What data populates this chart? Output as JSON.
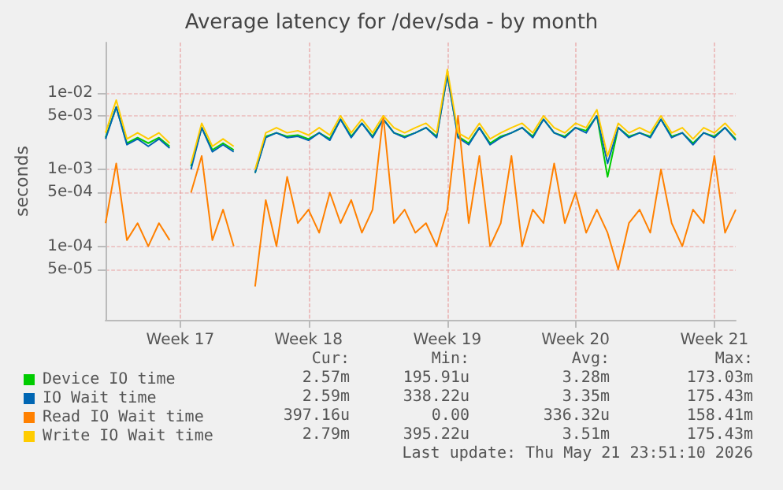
{
  "chart_data": {
    "type": "line",
    "title": "Average latency for /dev/sda - by month",
    "ylabel": "seconds",
    "log": "y",
    "categories": [
      null,
      null,
      null,
      null,
      null,
      null,
      null,
      "Week 17",
      null,
      null,
      null,
      null,
      null,
      null,
      null,
      null,
      null,
      null,
      null,
      "Week 18",
      null,
      null,
      null,
      null,
      null,
      null,
      null,
      null,
      null,
      null,
      null,
      null,
      "Week 19",
      null,
      null,
      null,
      null,
      null,
      null,
      null,
      null,
      null,
      null,
      null,
      "Week 20",
      null,
      null,
      null,
      null,
      null,
      null,
      null,
      null,
      null,
      null,
      null,
      null,
      "Week 21",
      null,
      null
    ],
    "series": [
      {
        "name": "Device IO time",
        "color": "#00cc00",
        "values": [
          0.0026,
          0.0065,
          0.0022,
          0.0026,
          0.0022,
          0.0026,
          0.002,
          null,
          0.0011,
          0.0035,
          0.0018,
          0.0022,
          0.0018,
          null,
          0.0009,
          0.0027,
          0.003,
          0.0027,
          0.0028,
          0.0025,
          0.003,
          0.0025,
          0.0045,
          0.0027,
          0.004,
          0.0027,
          0.0045,
          0.003,
          0.0027,
          0.003,
          0.0035,
          0.0027,
          0.017,
          0.0027,
          0.0022,
          0.0035,
          0.0022,
          0.0027,
          0.003,
          0.0035,
          0.0027,
          0.0045,
          0.003,
          0.0027,
          0.0035,
          0.0032,
          0.005,
          0.0008,
          0.0035,
          0.0027,
          0.003,
          0.0027,
          0.0045,
          0.0027,
          0.003,
          0.0022,
          0.003,
          0.0027,
          0.0035,
          0.0025
        ]
      },
      {
        "name": "IO Wait time",
        "color": "#0066b3",
        "values": [
          0.0025,
          0.0065,
          0.0021,
          0.0025,
          0.002,
          0.0025,
          0.0019,
          null,
          0.001,
          0.0035,
          0.0017,
          0.0021,
          0.0017,
          null,
          0.0009,
          0.0026,
          0.003,
          0.0026,
          0.0027,
          0.0024,
          0.003,
          0.0024,
          0.0045,
          0.0026,
          0.004,
          0.0026,
          0.0045,
          0.003,
          0.0026,
          0.003,
          0.0035,
          0.0026,
          0.017,
          0.0026,
          0.0021,
          0.0035,
          0.0021,
          0.0026,
          0.003,
          0.0035,
          0.0026,
          0.0045,
          0.003,
          0.0026,
          0.0035,
          0.003,
          0.005,
          0.0012,
          0.0035,
          0.0026,
          0.003,
          0.0026,
          0.0045,
          0.0026,
          0.003,
          0.0021,
          0.003,
          0.0026,
          0.0035,
          0.0024
        ]
      },
      {
        "name": "Read IO Wait time",
        "color": "#ff8000",
        "values": [
          0.0002,
          0.0012,
          0.00012,
          0.0002,
          0.0001,
          0.0002,
          0.00012,
          null,
          0.0005,
          0.0015,
          0.00012,
          0.0003,
          0.0001,
          null,
          3e-05,
          0.0004,
          0.0001,
          0.0008,
          0.0002,
          0.0003,
          0.00015,
          0.0005,
          0.0002,
          0.0004,
          0.00015,
          0.0003,
          0.005,
          0.0002,
          0.0003,
          0.00015,
          0.0002,
          0.0001,
          0.0003,
          0.005,
          0.0002,
          0.0015,
          0.0001,
          0.0002,
          0.0015,
          0.0001,
          0.0003,
          0.0002,
          0.0012,
          0.0002,
          0.0005,
          0.00015,
          0.0003,
          0.00015,
          5e-05,
          0.0002,
          0.0003,
          0.00015,
          0.001,
          0.0002,
          0.0001,
          0.0003,
          0.0002,
          0.0015,
          0.00015,
          0.0003
        ]
      },
      {
        "name": "Write IO Wait time",
        "color": "#ffcc00",
        "values": [
          0.003,
          0.008,
          0.0025,
          0.003,
          0.0025,
          0.003,
          0.0022,
          null,
          0.0012,
          0.004,
          0.002,
          0.0025,
          0.002,
          null,
          0.001,
          0.003,
          0.0035,
          0.003,
          0.0032,
          0.0028,
          0.0035,
          0.0028,
          0.005,
          0.003,
          0.0045,
          0.003,
          0.005,
          0.0035,
          0.003,
          0.0035,
          0.004,
          0.003,
          0.02,
          0.003,
          0.0025,
          0.004,
          0.0025,
          0.003,
          0.0035,
          0.004,
          0.003,
          0.005,
          0.0035,
          0.003,
          0.004,
          0.0035,
          0.006,
          0.0015,
          0.004,
          0.003,
          0.0035,
          0.003,
          0.005,
          0.003,
          0.0035,
          0.0025,
          0.0035,
          0.003,
          0.004,
          0.0028
        ]
      }
    ],
    "ylim": [
      1.1e-05,
      0.045
    ],
    "yticks": [
      {
        "value": 0.01,
        "label": "1e-02"
      },
      {
        "value": 0.005,
        "label": "5e-03"
      },
      {
        "value": 0.001,
        "label": "1e-03"
      },
      {
        "value": 0.0005,
        "label": "5e-04"
      },
      {
        "value": 0.0001,
        "label": "1e-04"
      },
      {
        "value": 5e-05,
        "label": "5e-05"
      }
    ],
    "grid": true,
    "legend": "bottom left",
    "annotations": [
      "Cur:",
      "Min:",
      "Avg:",
      "Max:",
      "2.57m",
      "195.91u",
      "3.28m",
      "173.03m",
      "2.59m",
      "338.22u",
      "3.35m",
      "175.43m",
      "397.16u",
      "0.00",
      "336.32u",
      "158.41m",
      "2.79m",
      "395.22u",
      "3.51m",
      "175.43m",
      "Last update: Thu May 21 23:51:10 2026"
    ]
  }
}
